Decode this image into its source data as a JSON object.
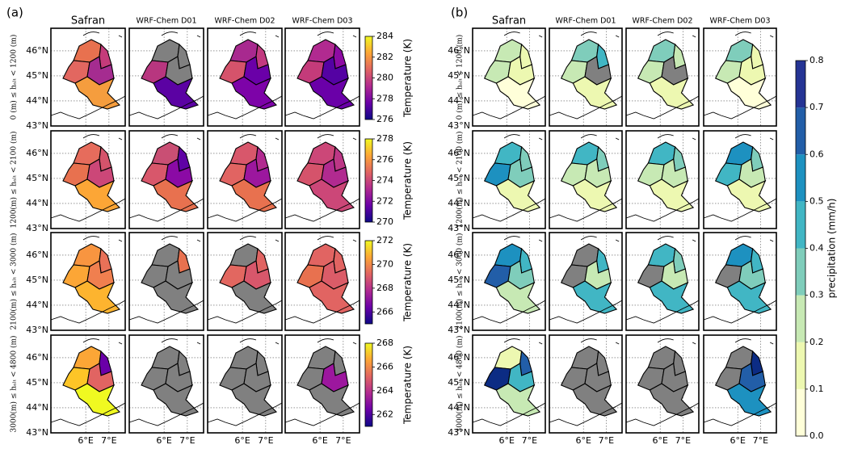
{
  "map": {
    "xlim": [
      4.5,
      7.7
    ],
    "ylim": [
      43,
      46.9
    ],
    "xticks": [
      {
        "value": 6,
        "label": "6°E"
      },
      {
        "value": 7,
        "label": "7°E"
      }
    ],
    "yticks": [
      {
        "value": 43,
        "label": "43°N"
      },
      {
        "value": 44,
        "label": "44°N"
      },
      {
        "value": 45,
        "label": "45°N"
      },
      {
        "value": 46,
        "label": "46°N"
      }
    ],
    "no_data_color": "#808080"
  },
  "row_labels": [
    "0 (m) ≤ hₐₗₜ < 1200 (m)",
    "1200(m) ≤ hₐₗₜ < 2100 (m)",
    "2100(m) ≤ hₐₗₜ < 3000 (m)",
    "3000(m) ≤ hₐₗₜ < 4800 (m)"
  ],
  "panels": [
    {
      "label": "(a)",
      "columns": [
        "Safran",
        "WRF-Chem D01",
        "WRF-Chem D02",
        "WRF-Chem D03"
      ],
      "colormap": [
        "#0d0887",
        "#6a00a8",
        "#b12a90",
        "#e16462",
        "#fca636",
        "#f0f921"
      ],
      "colorbars": [
        {
          "label": "Temperature (K)",
          "lim": [
            276,
            284
          ],
          "ticks": [
            276,
            278,
            280,
            282,
            284
          ]
        },
        {
          "label": "Temperature (K)",
          "lim": [
            270,
            278
          ],
          "ticks": [
            270,
            272,
            274,
            276,
            278
          ]
        },
        {
          "label": "Temperature (K)",
          "lim": [
            265,
            272
          ],
          "ticks": [
            266,
            268,
            270,
            272
          ]
        },
        {
          "label": "Temperature (K)",
          "lim": [
            261,
            268
          ],
          "ticks": [
            262,
            264,
            266,
            268
          ]
        }
      ],
      "map_colors": [
        [
          [
            "#e8714f",
            "#c43b7a",
            "#e26760",
            "#a52c90",
            "#f59d3e"
          ],
          [
            "#808080",
            "#808080",
            "#b8367f",
            "#808080",
            "#5b02a3"
          ],
          [
            "#a8298f",
            "#c23a80",
            "#d5536b",
            "#6a00a8",
            "#7d03a8"
          ],
          [
            "#b12a90",
            "#8e0ba4",
            "#c43b7a",
            "#5402a3",
            "#6a00a8"
          ]
        ],
        [
          [
            "#e66c5c",
            "#d5536b",
            "#e8714f",
            "#cc4778",
            "#fca636"
          ],
          [
            "#c94f74",
            "#5f02a5",
            "#d8576b",
            "#8b0aa5",
            "#e8714f"
          ],
          [
            "#d8576b",
            "#b12a90",
            "#e16462",
            "#9c179e",
            "#e8714f"
          ],
          [
            "#cc4778",
            "#bd3786",
            "#d5536b",
            "#b12a90",
            "#cc4778"
          ]
        ],
        [
          [
            "#f89540",
            "#e97158",
            "#fca636",
            "#f07f4f",
            "#fdb42f"
          ],
          [
            "#808080",
            "#e8714f",
            "#808080",
            "#808080",
            "#808080"
          ],
          [
            "#808080",
            "#e16462",
            "#e26760",
            "#d8576b",
            "#808080"
          ],
          [
            "#e16462",
            "#e16462",
            "#e8714f",
            "#db5c68",
            "#e16462"
          ]
        ],
        [
          [
            "#fca636",
            "#6a00a8",
            "#fdc527",
            "#e16462",
            "#f0f921"
          ],
          [
            "#808080",
            "#808080",
            "#808080",
            "#808080",
            "#808080"
          ],
          [
            "#808080",
            "#808080",
            "#808080",
            "#808080",
            "#808080"
          ],
          [
            "#808080",
            "#808080",
            "#808080",
            "#9c179e",
            "#808080"
          ]
        ]
      ]
    },
    {
      "label": "(b)",
      "columns": [
        "Safran",
        "WRF-Chem D01",
        "WRF-Chem D02",
        "WRF-Chem D03"
      ],
      "colorbar": {
        "label": "precipitation (mm/h)",
        "lim": [
          0,
          0.8
        ],
        "ticks": [
          {
            "value": 0,
            "label": "0.0"
          },
          {
            "value": 0.1,
            "label": "0.1"
          },
          {
            "value": 0.2,
            "label": "0.2"
          },
          {
            "value": 0.3,
            "label": "0.3"
          },
          {
            "value": 0.4,
            "label": "0.4"
          },
          {
            "value": 0.5,
            "label": "0.5"
          },
          {
            "value": 0.6,
            "label": "0.6"
          },
          {
            "value": 0.7,
            "label": "0.7"
          },
          {
            "value": 0.8,
            "label": "0.8"
          }
        ],
        "levels": [
          "#ffffd9",
          "#edf8b1",
          "#c7e9b4",
          "#7fcdbb",
          "#41b6c4",
          "#1d91c0",
          "#225ea8",
          "#253494"
        ]
      },
      "map_colors": [
        [
          [
            "#c7e9b4",
            "#edf8b1",
            "#c7e9b4",
            "#edf8b1",
            "#ffffd9"
          ],
          [
            "#7fcdbb",
            "#41b6c4",
            "#c7e9b4",
            "#808080",
            "#edf8b1"
          ],
          [
            "#7fcdbb",
            "#c7e9b4",
            "#c7e9b4",
            "#808080",
            "#edf8b1"
          ],
          [
            "#7fcdbb",
            "#edf8b1",
            "#c7e9b4",
            "#edf8b1",
            "#ffffd9"
          ]
        ],
        [
          [
            "#41b6c4",
            "#7fcdbb",
            "#1d91c0",
            "#7fcdbb",
            "#edf8b1"
          ],
          [
            "#41b6c4",
            "#7fcdbb",
            "#c7e9b4",
            "#c7e9b4",
            "#edf8b1"
          ],
          [
            "#41b6c4",
            "#7fcdbb",
            "#c7e9b4",
            "#c7e9b4",
            "#edf8b1"
          ],
          [
            "#1d91c0",
            "#7fcdbb",
            "#41b6c4",
            "#c7e9b4",
            "#edf8b1"
          ]
        ],
        [
          [
            "#1d91c0",
            "#41b6c4",
            "#225ea8",
            "#7fcdbb",
            "#c7e9b4"
          ],
          [
            "#808080",
            "#41b6c4",
            "#808080",
            "#c7e9b4",
            "#41b6c4"
          ],
          [
            "#41b6c4",
            "#7fcdbb",
            "#808080",
            "#c7e9b4",
            "#41b6c4"
          ],
          [
            "#1d91c0",
            "#41b6c4",
            "#808080",
            "#7fcdbb",
            "#41b6c4"
          ]
        ],
        [
          [
            "#edf8b1",
            "#225ea8",
            "#0c2c84",
            "#41b6c4",
            "#c7e9b4"
          ],
          [
            "#808080",
            "#808080",
            "#808080",
            "#808080",
            "#808080"
          ],
          [
            "#808080",
            "#808080",
            "#808080",
            "#808080",
            "#808080"
          ],
          [
            "#808080",
            "#0c2c84",
            "#808080",
            "#225ea8",
            "#1d91c0"
          ]
        ]
      ]
    }
  ]
}
